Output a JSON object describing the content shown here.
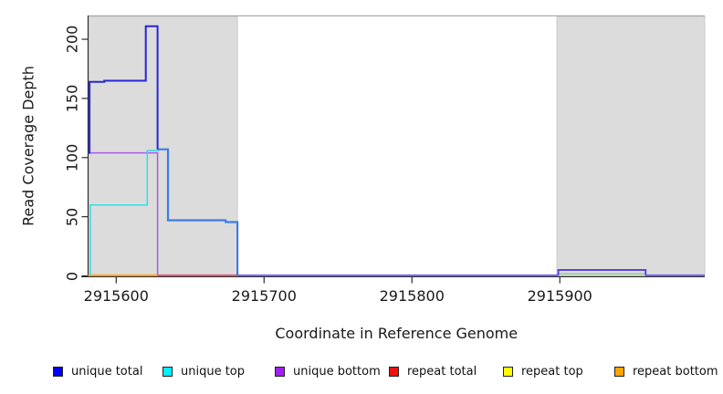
{
  "chart_data": {
    "type": "line",
    "title": "",
    "xlabel": "Coordinate in Reference Genome",
    "ylabel": "Read Coverage Depth",
    "x_ticks": [
      2915600,
      2915700,
      2915800,
      2915900
    ],
    "x_tick_labels": [
      "2915600",
      "2915700",
      "2915800",
      "2915900"
    ],
    "y_ticks": [
      0,
      50,
      100,
      150,
      200
    ],
    "y_tick_labels": [
      "0",
      "50",
      "100",
      "150",
      "200"
    ],
    "xlim": [
      2915581,
      2915998
    ],
    "ylim": [
      0,
      219
    ],
    "grid": false,
    "legend_position": "bottom",
    "shaded_regions": [
      {
        "name": "repeat-region-left",
        "x0": 2915581,
        "x1": 2915682,
        "fill": "#dcdcdc",
        "stroke": "#c2c2c2"
      },
      {
        "name": "repeat-region-right",
        "x0": 2915898,
        "x1": 2915998,
        "fill": "#dcdcdc",
        "stroke": "#c2c2c2"
      }
    ],
    "series": [
      {
        "name": "unique-bottom-baseline-a",
        "color": "#7063e8",
        "width": 2,
        "points": [
          [
            2915682,
            0.5
          ],
          [
            2915899,
            0.5
          ]
        ]
      },
      {
        "name": "unique-bottom-baseline-b",
        "color": "#7063e8",
        "width": 2,
        "points": [
          [
            2915958,
            0.5
          ],
          [
            2915998,
            0.5
          ]
        ]
      },
      {
        "name": "overlap-green",
        "color": "#8fcc8f",
        "width": 1.5,
        "points": [
          [
            2915900,
            1.8
          ],
          [
            2915957,
            1.8
          ]
        ]
      },
      {
        "name": "total-bump",
        "color": "#5a44de",
        "width": 2,
        "points": [
          [
            2915899,
            0.5
          ],
          [
            2915899,
            5
          ],
          [
            2915958,
            5
          ],
          [
            2915958,
            0.5
          ]
        ]
      },
      {
        "name": "repeat-total",
        "color": "#dc5878",
        "width": 2,
        "points": [
          [
            2915628,
            0.5
          ],
          [
            2915682,
            0.5
          ]
        ]
      },
      {
        "name": "repeat-bottom",
        "color": "#ffa51e",
        "width": 2,
        "points": [
          [
            2915581,
            0.5
          ],
          [
            2915628,
            0.5
          ]
        ]
      },
      {
        "name": "unique-bottom",
        "color": "#a85ce6",
        "width": 1.5,
        "points": [
          [
            2915581,
            104
          ],
          [
            2915628,
            104
          ],
          [
            2915628,
            0.5
          ]
        ]
      },
      {
        "name": "unique-top",
        "color": "#35dce4",
        "width": 1.5,
        "points": [
          [
            2915582.5,
            0.5
          ],
          [
            2915582.5,
            60
          ],
          [
            2915621,
            60
          ],
          [
            2915621,
            106
          ],
          [
            2915629,
            106
          ]
        ]
      },
      {
        "name": "unique-total-low",
        "color": "#3d7ce6",
        "width": 2.2,
        "points": [
          [
            2915628,
            107
          ],
          [
            2915635,
            107
          ],
          [
            2915635,
            47
          ],
          [
            2915674,
            47
          ],
          [
            2915674,
            45.5
          ],
          [
            2915682,
            45.5
          ],
          [
            2915682,
            0.5
          ]
        ]
      },
      {
        "name": "unique-total",
        "color": "#2626d9",
        "width": 2,
        "points": [
          [
            2915581,
            104
          ],
          [
            2915582,
            104
          ],
          [
            2915582,
            164
          ],
          [
            2915592,
            164
          ],
          [
            2915592,
            165
          ],
          [
            2915620,
            165
          ],
          [
            2915620,
            211
          ],
          [
            2915628,
            211
          ],
          [
            2915628,
            107
          ]
        ]
      }
    ]
  },
  "legend": {
    "items": [
      {
        "label": "unique total",
        "color": "#0000f5"
      },
      {
        "label": "unique top",
        "color": "#00f0ff"
      },
      {
        "label": "unique bottom",
        "color": "#a020f0"
      },
      {
        "label": "repeat total",
        "color": "#ee1111"
      },
      {
        "label": "repeat top",
        "color": "#ffff00"
      },
      {
        "label": "repeat bottom",
        "color": "#ffa500"
      }
    ]
  }
}
